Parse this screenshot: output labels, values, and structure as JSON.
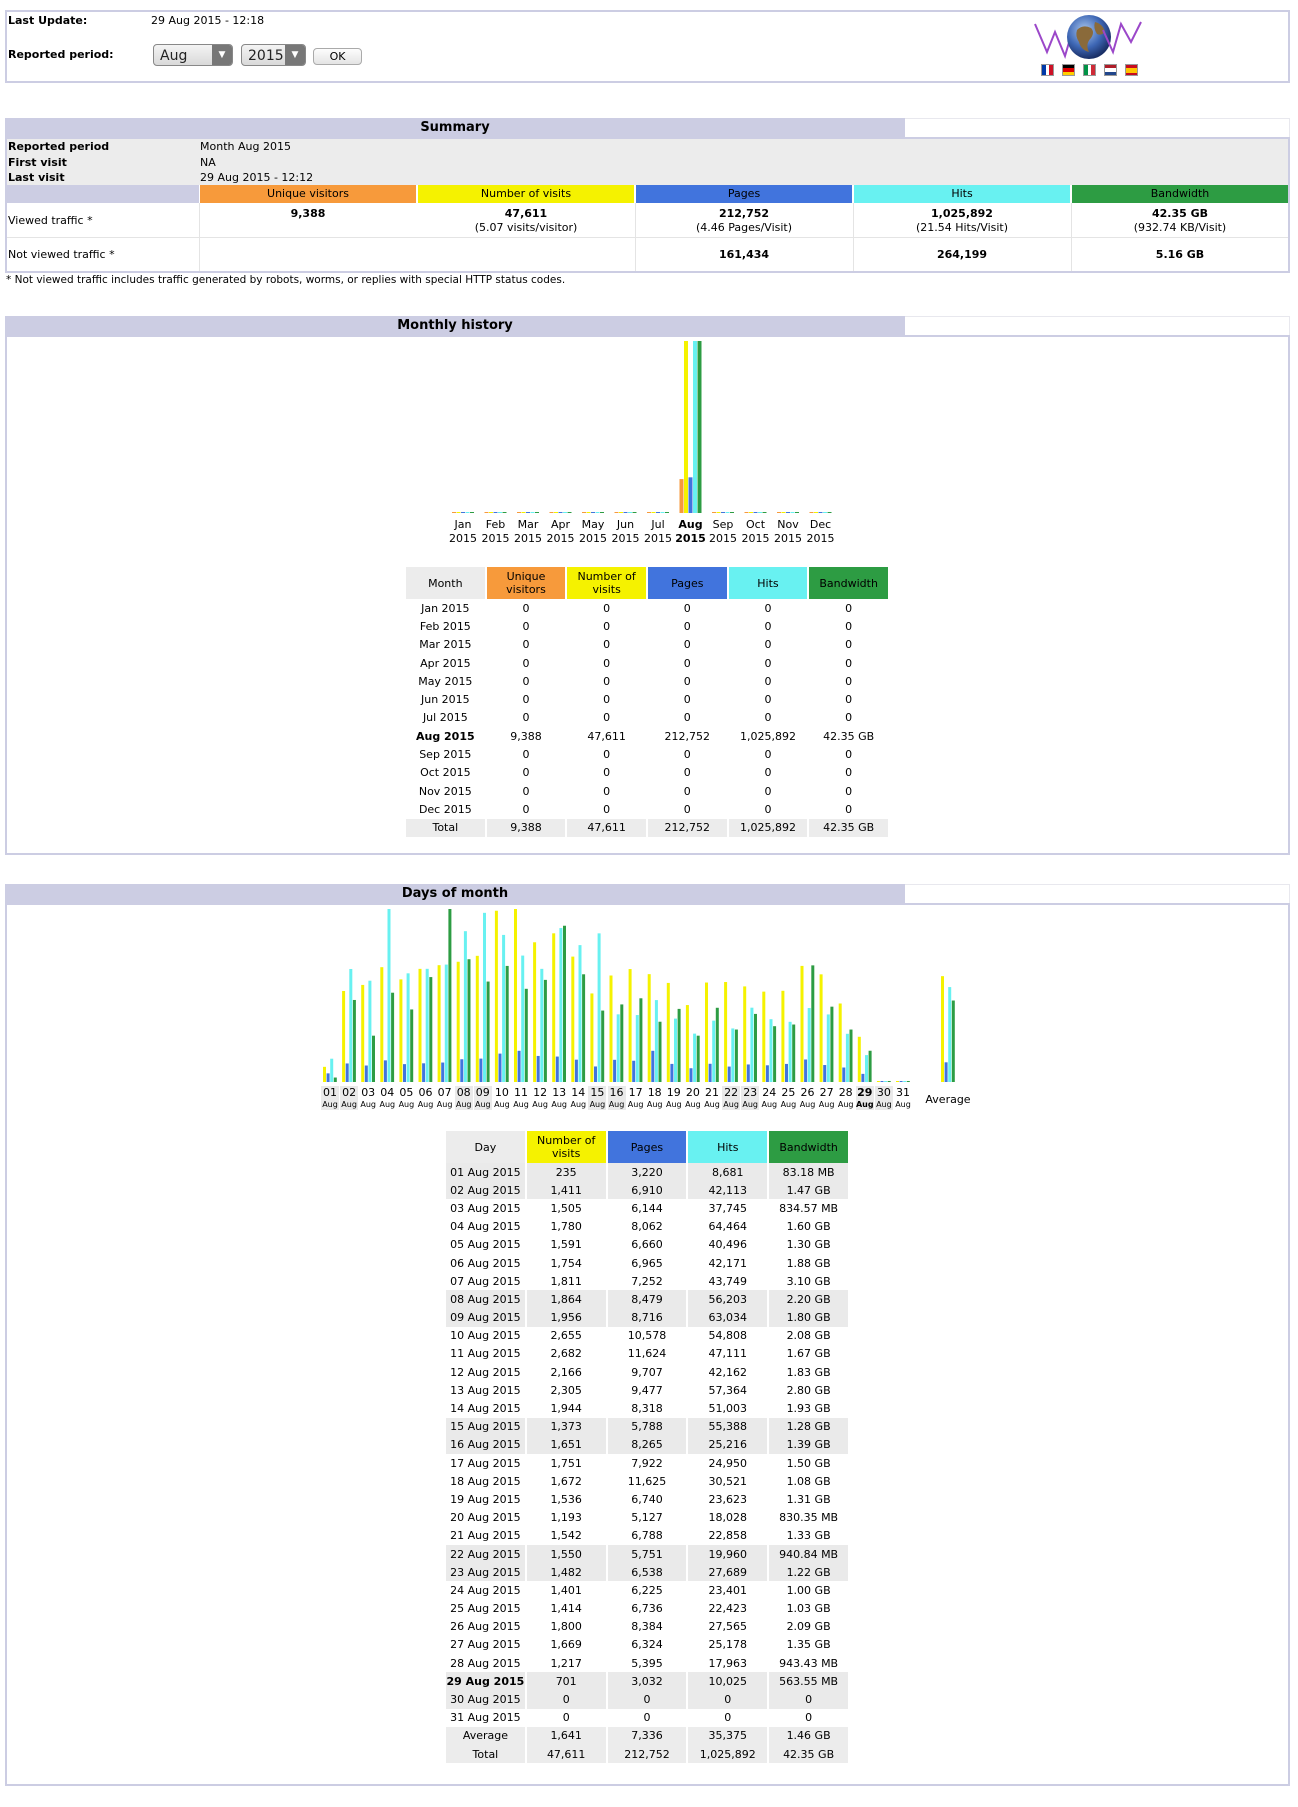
{
  "header": {
    "last_update_label": "Last Update:",
    "last_update_value": "29 Aug 2015 - 12:18",
    "reported_period_label": "Reported period:",
    "month_select": "Aug",
    "year_select": "2015",
    "ok_label": "OK",
    "flags": [
      "fr",
      "de",
      "it",
      "nl",
      "es"
    ]
  },
  "colors": {
    "unique": "#f79a3b",
    "visits": "#f5f200",
    "pages": "#4174dd",
    "hits": "#68f1f1",
    "bandwidth": "#2d9c43",
    "section_title": "#cccde3"
  },
  "summary": {
    "title": "Summary",
    "reported_period_label": "Reported period",
    "reported_period_value": "Month Aug 2015",
    "first_visit_label": "First visit",
    "first_visit_value": "NA",
    "last_visit_label": "Last visit",
    "last_visit_value": "29 Aug 2015 - 12:12",
    "col_unique": "Unique visitors",
    "col_visits": "Number of visits",
    "col_pages": "Pages",
    "col_hits": "Hits",
    "col_bandwidth": "Bandwidth",
    "viewed_label": "Viewed traffic *",
    "viewed_unique": "9,388",
    "viewed_visits": "47,611",
    "viewed_visits_sub": "(5.07 visits/visitor)",
    "viewed_pages": "212,752",
    "viewed_pages_sub": "(4.46 Pages/Visit)",
    "viewed_hits": "1,025,892",
    "viewed_hits_sub": "(21.54 Hits/Visit)",
    "viewed_bandwidth": "42.35 GB",
    "viewed_bandwidth_sub": "(932.74 KB/Visit)",
    "notviewed_label": "Not viewed traffic *",
    "notviewed_pages": "161,434",
    "notviewed_hits": "264,199",
    "notviewed_bandwidth": "5.16 GB",
    "footnote": "* Not viewed traffic includes traffic generated by robots, worms, or replies with special HTTP status codes."
  },
  "monthly": {
    "title": "Monthly history",
    "col_month": "Month",
    "col_unique": "Unique visitors",
    "col_visits": "Number of visits",
    "col_pages": "Pages",
    "col_hits": "Hits",
    "col_bandwidth": "Bandwidth",
    "rows": [
      {
        "month": "Jan 2015",
        "unique": "0",
        "visits": "0",
        "pages": "0",
        "hits": "0",
        "bandwidth": "0"
      },
      {
        "month": "Feb 2015",
        "unique": "0",
        "visits": "0",
        "pages": "0",
        "hits": "0",
        "bandwidth": "0"
      },
      {
        "month": "Mar 2015",
        "unique": "0",
        "visits": "0",
        "pages": "0",
        "hits": "0",
        "bandwidth": "0"
      },
      {
        "month": "Apr 2015",
        "unique": "0",
        "visits": "0",
        "pages": "0",
        "hits": "0",
        "bandwidth": "0"
      },
      {
        "month": "May 2015",
        "unique": "0",
        "visits": "0",
        "pages": "0",
        "hits": "0",
        "bandwidth": "0"
      },
      {
        "month": "Jun 2015",
        "unique": "0",
        "visits": "0",
        "pages": "0",
        "hits": "0",
        "bandwidth": "0"
      },
      {
        "month": "Jul 2015",
        "unique": "0",
        "visits": "0",
        "pages": "0",
        "hits": "0",
        "bandwidth": "0"
      },
      {
        "month": "Aug 2015",
        "unique": "9,388",
        "visits": "47,611",
        "pages": "212,752",
        "hits": "1,025,892",
        "bandwidth": "42.35 GB",
        "current": true
      },
      {
        "month": "Sep 2015",
        "unique": "0",
        "visits": "0",
        "pages": "0",
        "hits": "0",
        "bandwidth": "0"
      },
      {
        "month": "Oct 2015",
        "unique": "0",
        "visits": "0",
        "pages": "0",
        "hits": "0",
        "bandwidth": "0"
      },
      {
        "month": "Nov 2015",
        "unique": "0",
        "visits": "0",
        "pages": "0",
        "hits": "0",
        "bandwidth": "0"
      },
      {
        "month": "Dec 2015",
        "unique": "0",
        "visits": "0",
        "pages": "0",
        "hits": "0",
        "bandwidth": "0"
      }
    ],
    "total_label": "Total",
    "total": {
      "unique": "9,388",
      "visits": "47,611",
      "pages": "212,752",
      "hits": "1,025,892",
      "bandwidth": "42.35 GB"
    }
  },
  "days": {
    "title": "Days of month",
    "col_day": "Day",
    "col_visits": "Number of visits",
    "col_pages": "Pages",
    "col_hits": "Hits",
    "col_bandwidth": "Bandwidth",
    "rows": [
      {
        "day": "01 Aug 2015",
        "visits": "235",
        "pages": "3,220",
        "hits": "8,681",
        "bandwidth": "83.18 MB",
        "weekend": true
      },
      {
        "day": "02 Aug 2015",
        "visits": "1,411",
        "pages": "6,910",
        "hits": "42,113",
        "bandwidth": "1.47 GB",
        "weekend": true
      },
      {
        "day": "03 Aug 2015",
        "visits": "1,505",
        "pages": "6,144",
        "hits": "37,745",
        "bandwidth": "834.57 MB"
      },
      {
        "day": "04 Aug 2015",
        "visits": "1,780",
        "pages": "8,062",
        "hits": "64,464",
        "bandwidth": "1.60 GB"
      },
      {
        "day": "05 Aug 2015",
        "visits": "1,591",
        "pages": "6,660",
        "hits": "40,496",
        "bandwidth": "1.30 GB"
      },
      {
        "day": "06 Aug 2015",
        "visits": "1,754",
        "pages": "6,965",
        "hits": "42,171",
        "bandwidth": "1.88 GB"
      },
      {
        "day": "07 Aug 2015",
        "visits": "1,811",
        "pages": "7,252",
        "hits": "43,749",
        "bandwidth": "3.10 GB"
      },
      {
        "day": "08 Aug 2015",
        "visits": "1,864",
        "pages": "8,479",
        "hits": "56,203",
        "bandwidth": "2.20 GB",
        "weekend": true
      },
      {
        "day": "09 Aug 2015",
        "visits": "1,956",
        "pages": "8,716",
        "hits": "63,034",
        "bandwidth": "1.80 GB",
        "weekend": true
      },
      {
        "day": "10 Aug 2015",
        "visits": "2,655",
        "pages": "10,578",
        "hits": "54,808",
        "bandwidth": "2.08 GB"
      },
      {
        "day": "11 Aug 2015",
        "visits": "2,682",
        "pages": "11,624",
        "hits": "47,111",
        "bandwidth": "1.67 GB"
      },
      {
        "day": "12 Aug 2015",
        "visits": "2,166",
        "pages": "9,707",
        "hits": "42,162",
        "bandwidth": "1.83 GB"
      },
      {
        "day": "13 Aug 2015",
        "visits": "2,305",
        "pages": "9,477",
        "hits": "57,364",
        "bandwidth": "2.80 GB"
      },
      {
        "day": "14 Aug 2015",
        "visits": "1,944",
        "pages": "8,318",
        "hits": "51,003",
        "bandwidth": "1.93 GB"
      },
      {
        "day": "15 Aug 2015",
        "visits": "1,373",
        "pages": "5,788",
        "hits": "55,388",
        "bandwidth": "1.28 GB",
        "weekend": true
      },
      {
        "day": "16 Aug 2015",
        "visits": "1,651",
        "pages": "8,265",
        "hits": "25,216",
        "bandwidth": "1.39 GB",
        "weekend": true
      },
      {
        "day": "17 Aug 2015",
        "visits": "1,751",
        "pages": "7,922",
        "hits": "24,950",
        "bandwidth": "1.50 GB"
      },
      {
        "day": "18 Aug 2015",
        "visits": "1,672",
        "pages": "11,625",
        "hits": "30,521",
        "bandwidth": "1.08 GB"
      },
      {
        "day": "19 Aug 2015",
        "visits": "1,536",
        "pages": "6,740",
        "hits": "23,623",
        "bandwidth": "1.31 GB"
      },
      {
        "day": "20 Aug 2015",
        "visits": "1,193",
        "pages": "5,127",
        "hits": "18,028",
        "bandwidth": "830.35 MB"
      },
      {
        "day": "21 Aug 2015",
        "visits": "1,542",
        "pages": "6,788",
        "hits": "22,858",
        "bandwidth": "1.33 GB"
      },
      {
        "day": "22 Aug 2015",
        "visits": "1,550",
        "pages": "5,751",
        "hits": "19,960",
        "bandwidth": "940.84 MB",
        "weekend": true
      },
      {
        "day": "23 Aug 2015",
        "visits": "1,482",
        "pages": "6,538",
        "hits": "27,689",
        "bandwidth": "1.22 GB",
        "weekend": true
      },
      {
        "day": "24 Aug 2015",
        "visits": "1,401",
        "pages": "6,225",
        "hits": "23,401",
        "bandwidth": "1.00 GB"
      },
      {
        "day": "25 Aug 2015",
        "visits": "1,414",
        "pages": "6,736",
        "hits": "22,423",
        "bandwidth": "1.03 GB"
      },
      {
        "day": "26 Aug 2015",
        "visits": "1,800",
        "pages": "8,384",
        "hits": "27,565",
        "bandwidth": "2.09 GB"
      },
      {
        "day": "27 Aug 2015",
        "visits": "1,669",
        "pages": "6,324",
        "hits": "25,178",
        "bandwidth": "1.35 GB"
      },
      {
        "day": "28 Aug 2015",
        "visits": "1,217",
        "pages": "5,395",
        "hits": "17,963",
        "bandwidth": "943.43 MB"
      },
      {
        "day": "29 Aug 2015",
        "visits": "701",
        "pages": "3,032",
        "hits": "10,025",
        "bandwidth": "563.55 MB",
        "weekend": true,
        "current": true
      },
      {
        "day": "30 Aug 2015",
        "visits": "0",
        "pages": "0",
        "hits": "0",
        "bandwidth": "0",
        "weekend": true
      },
      {
        "day": "31 Aug 2015",
        "visits": "0",
        "pages": "0",
        "hits": "0",
        "bandwidth": "0"
      }
    ],
    "average_label": "Average",
    "average": {
      "visits": "1,641",
      "pages": "7,336",
      "hits": "35,375",
      "bandwidth": "1.46 GB"
    },
    "total_label": "Total",
    "total": {
      "visits": "47,611",
      "pages": "212,752",
      "hits": "1,025,892",
      "bandwidth": "42.35 GB"
    }
  },
  "chart_data": [
    {
      "type": "bar",
      "categories": [
        "Jan 2015",
        "Feb 2015",
        "Mar 2015",
        "Apr 2015",
        "May 2015",
        "Jun 2015",
        "Jul 2015",
        "Aug 2015",
        "Sep 2015",
        "Oct 2015",
        "Nov 2015",
        "Dec 2015"
      ],
      "series": [
        {
          "values": [
            0,
            0,
            0,
            0,
            0,
            0,
            0,
            9388,
            0,
            0,
            0,
            0
          ]
        },
        {
          "values": [
            0,
            0,
            0,
            0,
            0,
            0,
            0,
            47611,
            0,
            0,
            0,
            0
          ]
        },
        {
          "values": [
            0,
            0,
            0,
            0,
            0,
            0,
            0,
            212752,
            0,
            0,
            0,
            0
          ]
        },
        {
          "values": [
            0,
            0,
            0,
            0,
            0,
            0,
            0,
            1025892,
            0,
            0,
            0,
            0
          ]
        },
        {
          "values": [
            0,
            0,
            0,
            0,
            0,
            0,
            0,
            42.35,
            0,
            0,
            0,
            0
          ]
        }
      ],
      "tick_months": [
        "Jan",
        "Feb",
        "Mar",
        "Apr",
        "May",
        "Jun",
        "Jul",
        "Aug",
        "Sep",
        "Oct",
        "Nov",
        "Dec"
      ],
      "tick_year": "2015"
    },
    {
      "type": "bar",
      "categories": [
        "01",
        "02",
        "03",
        "04",
        "05",
        "06",
        "07",
        "08",
        "09",
        "10",
        "11",
        "12",
        "13",
        "14",
        "15",
        "16",
        "17",
        "18",
        "19",
        "20",
        "21",
        "22",
        "23",
        "24",
        "25",
        "26",
        "27",
        "28",
        "29",
        "30",
        "31"
      ],
      "tick_sub": "Aug",
      "extra_label": "Average",
      "series": [
        {
          "values": [
            235,
            1411,
            1505,
            1780,
            1591,
            1754,
            1811,
            1864,
            1956,
            2655,
            2682,
            2166,
            2305,
            1944,
            1373,
            1651,
            1751,
            1672,
            1536,
            1193,
            1542,
            1550,
            1482,
            1401,
            1414,
            1800,
            1669,
            1217,
            701,
            0,
            0
          ],
          "average": 1641
        },
        {
          "values": [
            3220,
            6910,
            6144,
            8062,
            6660,
            6965,
            7252,
            8479,
            8716,
            10578,
            11624,
            9707,
            9477,
            8318,
            5788,
            8265,
            7922,
            11625,
            6740,
            5127,
            6788,
            5751,
            6538,
            6225,
            6736,
            8384,
            6324,
            5395,
            3032,
            0,
            0
          ],
          "average": 7336
        },
        {
          "values": [
            8681,
            42113,
            37745,
            64464,
            40496,
            42171,
            43749,
            56203,
            63034,
            54808,
            47111,
            42162,
            57364,
            51003,
            55388,
            25216,
            24950,
            30521,
            23623,
            18028,
            22858,
            19960,
            27689,
            23401,
            22423,
            27565,
            25178,
            17963,
            10025,
            0,
            0
          ],
          "average": 35375
        },
        {
          "values": [
            0.08,
            1.47,
            0.83,
            1.6,
            1.3,
            1.88,
            3.1,
            2.2,
            1.8,
            2.08,
            1.67,
            1.83,
            2.8,
            1.93,
            1.28,
            1.39,
            1.5,
            1.08,
            1.31,
            0.83,
            1.33,
            0.94,
            1.22,
            1.0,
            1.03,
            2.09,
            1.35,
            0.94,
            0.56,
            0,
            0
          ],
          "average": 1.46
        }
      ]
    }
  ]
}
